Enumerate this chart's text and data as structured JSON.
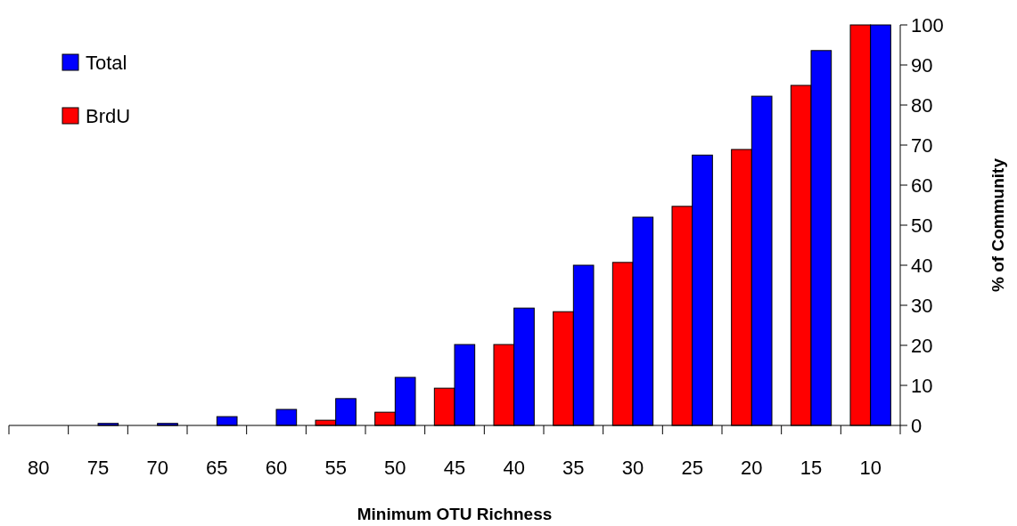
{
  "chart_data": {
    "type": "bar",
    "xlabel": "Minimum OTU Richness",
    "ylabel": "% of Community",
    "categories": [
      "80",
      "75",
      "70",
      "65",
      "60",
      "55",
      "50",
      "45",
      "40",
      "35",
      "30",
      "25",
      "20",
      "15",
      "10"
    ],
    "series": [
      {
        "name": "BrdU",
        "color": "#ff0000",
        "values": [
          0,
          0,
          0,
          0,
          0,
          1.3,
          3.3,
          9.3,
          20.2,
          28.4,
          40.7,
          54.7,
          68.9,
          84.9,
          100
        ]
      },
      {
        "name": "Total",
        "color": "#0000ff",
        "values": [
          0,
          0.5,
          0.5,
          2.2,
          4,
          6.7,
          12,
          20.2,
          29.3,
          40,
          52,
          67.5,
          82.2,
          93.6,
          100
        ]
      }
    ],
    "ylim": [
      0,
      100
    ],
    "yticks": [
      0,
      10,
      20,
      30,
      40,
      50,
      60,
      70,
      80,
      90,
      100
    ],
    "grid": false,
    "legend": "top left"
  }
}
